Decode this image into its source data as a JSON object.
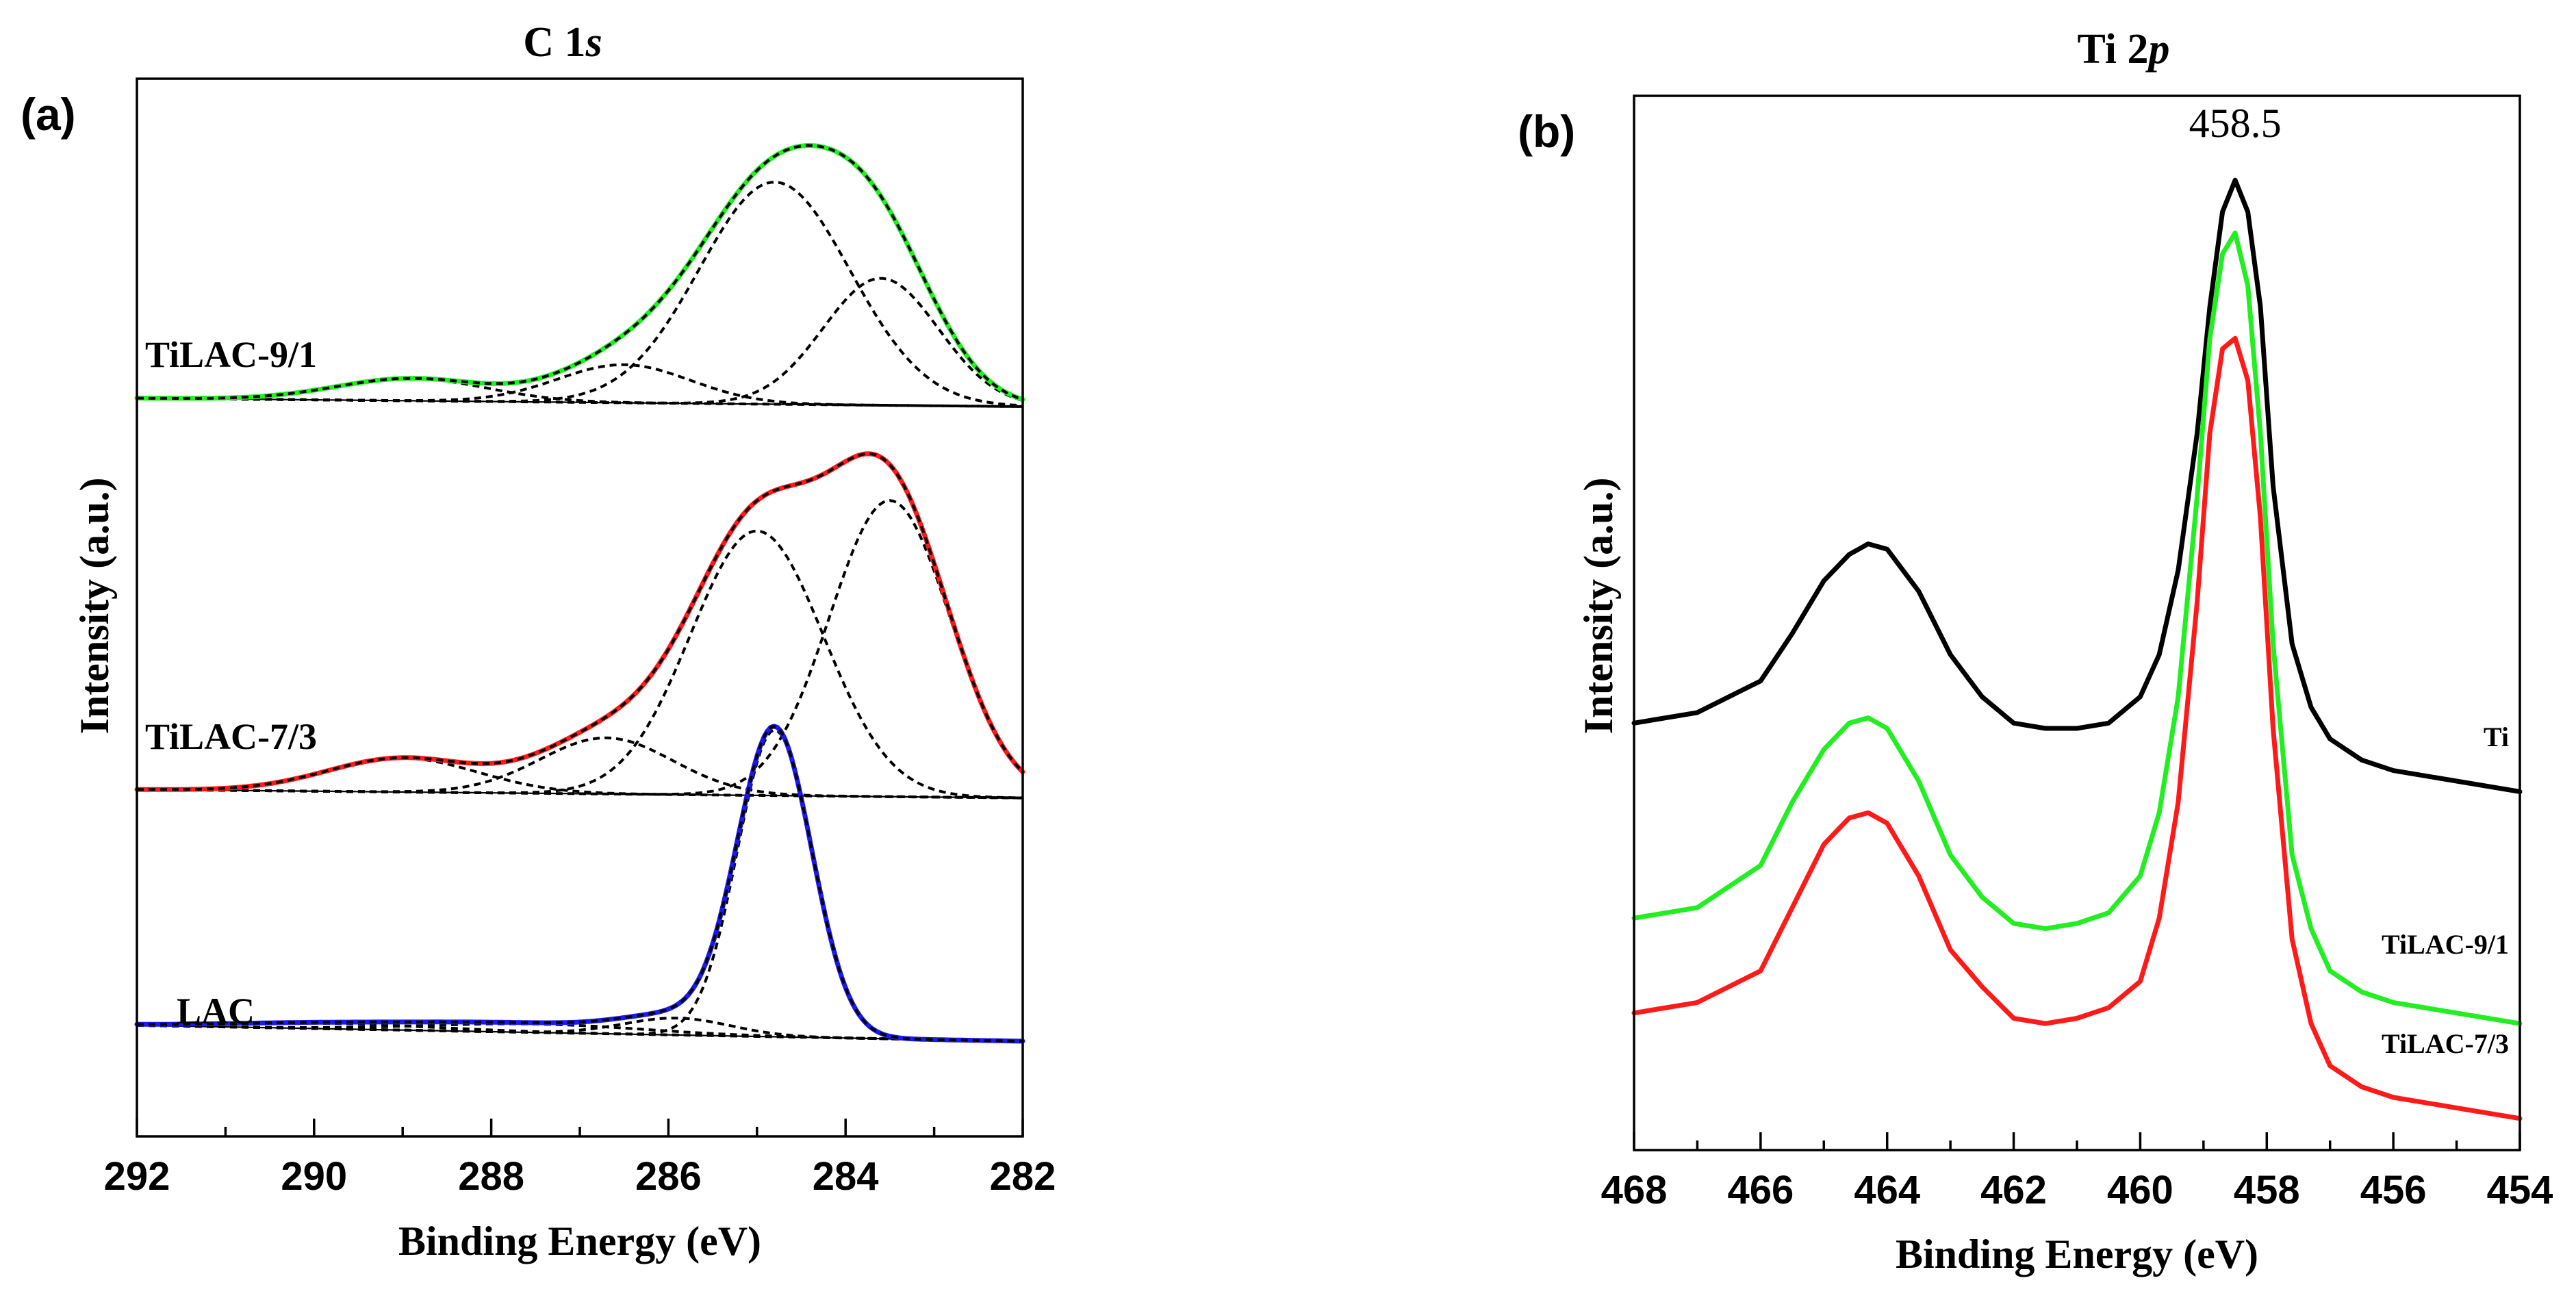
{
  "colors": {
    "black": "#000000",
    "green": "#22ee22",
    "red": "#ff1a1a",
    "blue": "#1a1aee"
  },
  "chart_data": [
    {
      "type": "line",
      "panel": "(a)",
      "title_main": "C 1",
      "title_italic": "s",
      "xlabel": "Binding Energy (eV)",
      "ylabel": "Intensity (a.u.)",
      "xlim": [
        292,
        282
      ],
      "x_reversed": true,
      "ylim": [
        0,
        100
      ],
      "xticks": [
        292,
        290,
        288,
        286,
        284,
        282
      ],
      "grid": false,
      "series": [
        {
          "name": "TiLAC-9/1",
          "color": "#22ee22",
          "offset": 69,
          "baseline": [
            0.8,
            0.0
          ],
          "components": [
            {
              "center": 284.8,
              "height": 21.0,
              "width": 0.85
            },
            {
              "center": 283.6,
              "height": 12.0,
              "width": 0.65
            },
            {
              "center": 286.5,
              "height": 3.6,
              "width": 0.75
            },
            {
              "center": 288.9,
              "height": 2.1,
              "width": 0.85
            }
          ]
        },
        {
          "name": "TiLAC-7/3",
          "color": "#ff1a1a",
          "offset": 32,
          "baseline": [
            0.8,
            0.0
          ],
          "components": [
            {
              "center": 285.0,
              "height": 25.0,
              "width": 0.75
            },
            {
              "center": 283.5,
              "height": 28.0,
              "width": 0.68
            },
            {
              "center": 286.7,
              "height": 5.3,
              "width": 0.75
            },
            {
              "center": 289.0,
              "height": 3.2,
              "width": 0.85
            }
          ]
        },
        {
          "name": "LAC",
          "color": "#1a1aee",
          "offset": 9,
          "baseline": [
            1.5,
            0.0
          ],
          "components": [
            {
              "center": 284.8,
              "height": 29.0,
              "width": 0.42
            },
            {
              "center": 285.9,
              "height": 1.6,
              "width": 0.6
            },
            {
              "center": 287.5,
              "height": 0.8,
              "width": 1.2
            },
            {
              "center": 289.8,
              "height": 0.5,
              "width": 1.2
            }
          ]
        }
      ]
    },
    {
      "type": "line",
      "panel": "(b)",
      "title_main": "Ti 2",
      "title_italic": "p",
      "xlabel": "Binding Energy (eV)",
      "ylabel": "Intensity (a.u.)",
      "xlim": [
        468,
        454
      ],
      "x_reversed": true,
      "ylim": [
        0,
        100
      ],
      "xticks": [
        468,
        466,
        464,
        462,
        460,
        458,
        456,
        454
      ],
      "annotation": {
        "text": "458.5",
        "x": 458.5
      },
      "grid": false,
      "series": [
        {
          "name": "Ti",
          "color": "#000000",
          "x": [
            468,
            467,
            466,
            465.5,
            465,
            464.6,
            464.3,
            464,
            463.5,
            463,
            462.5,
            462,
            461.5,
            461,
            460.5,
            460,
            459.7,
            459.4,
            459.1,
            458.9,
            458.7,
            458.5,
            458.3,
            458.1,
            457.9,
            457.6,
            457.3,
            457,
            456.5,
            456,
            455,
            454
          ],
          "y": [
            40.5,
            41.5,
            44.5,
            49,
            54,
            56.5,
            57.5,
            57,
            53,
            47,
            43,
            40.5,
            40,
            40,
            40.5,
            43,
            47,
            55,
            68,
            80,
            89,
            92,
            89,
            80,
            63,
            48,
            42,
            39,
            37,
            36,
            35,
            34
          ]
        },
        {
          "name": "TiLAC-9/1",
          "color": "#22ee22",
          "x": [
            468,
            467,
            466,
            465.5,
            465,
            464.6,
            464.3,
            464,
            463.5,
            463,
            462.5,
            462,
            461.5,
            461,
            460.5,
            460,
            459.7,
            459.4,
            459.1,
            458.9,
            458.7,
            458.5,
            458.3,
            458.1,
            457.9,
            457.6,
            457.3,
            457,
            456.5,
            456,
            455,
            454
          ],
          "y": [
            22,
            23,
            27,
            33,
            38,
            40.5,
            41,
            40,
            35,
            28,
            24,
            21.5,
            21,
            21.5,
            22.5,
            26,
            32,
            43,
            62,
            77,
            85,
            87,
            82,
            68,
            48,
            28,
            21,
            17,
            15,
            14,
            13,
            12
          ]
        },
        {
          "name": "TiLAC-7/3",
          "color": "#ff1a1a",
          "x": [
            468,
            467,
            466,
            465.5,
            465,
            464.6,
            464.3,
            464,
            463.5,
            463,
            462.5,
            462,
            461.5,
            461,
            460.5,
            460,
            459.7,
            459.4,
            459.1,
            458.9,
            458.7,
            458.5,
            458.3,
            458.1,
            457.9,
            457.6,
            457.3,
            457,
            456.5,
            456,
            455,
            454
          ],
          "y": [
            13,
            14,
            17,
            23,
            29,
            31.5,
            32,
            31,
            26,
            19,
            15.5,
            12.5,
            12,
            12.5,
            13.5,
            16,
            22,
            33,
            52,
            68,
            76,
            77,
            73,
            60,
            40,
            20,
            12,
            8,
            6,
            5,
            4,
            3
          ]
        }
      ]
    }
  ]
}
